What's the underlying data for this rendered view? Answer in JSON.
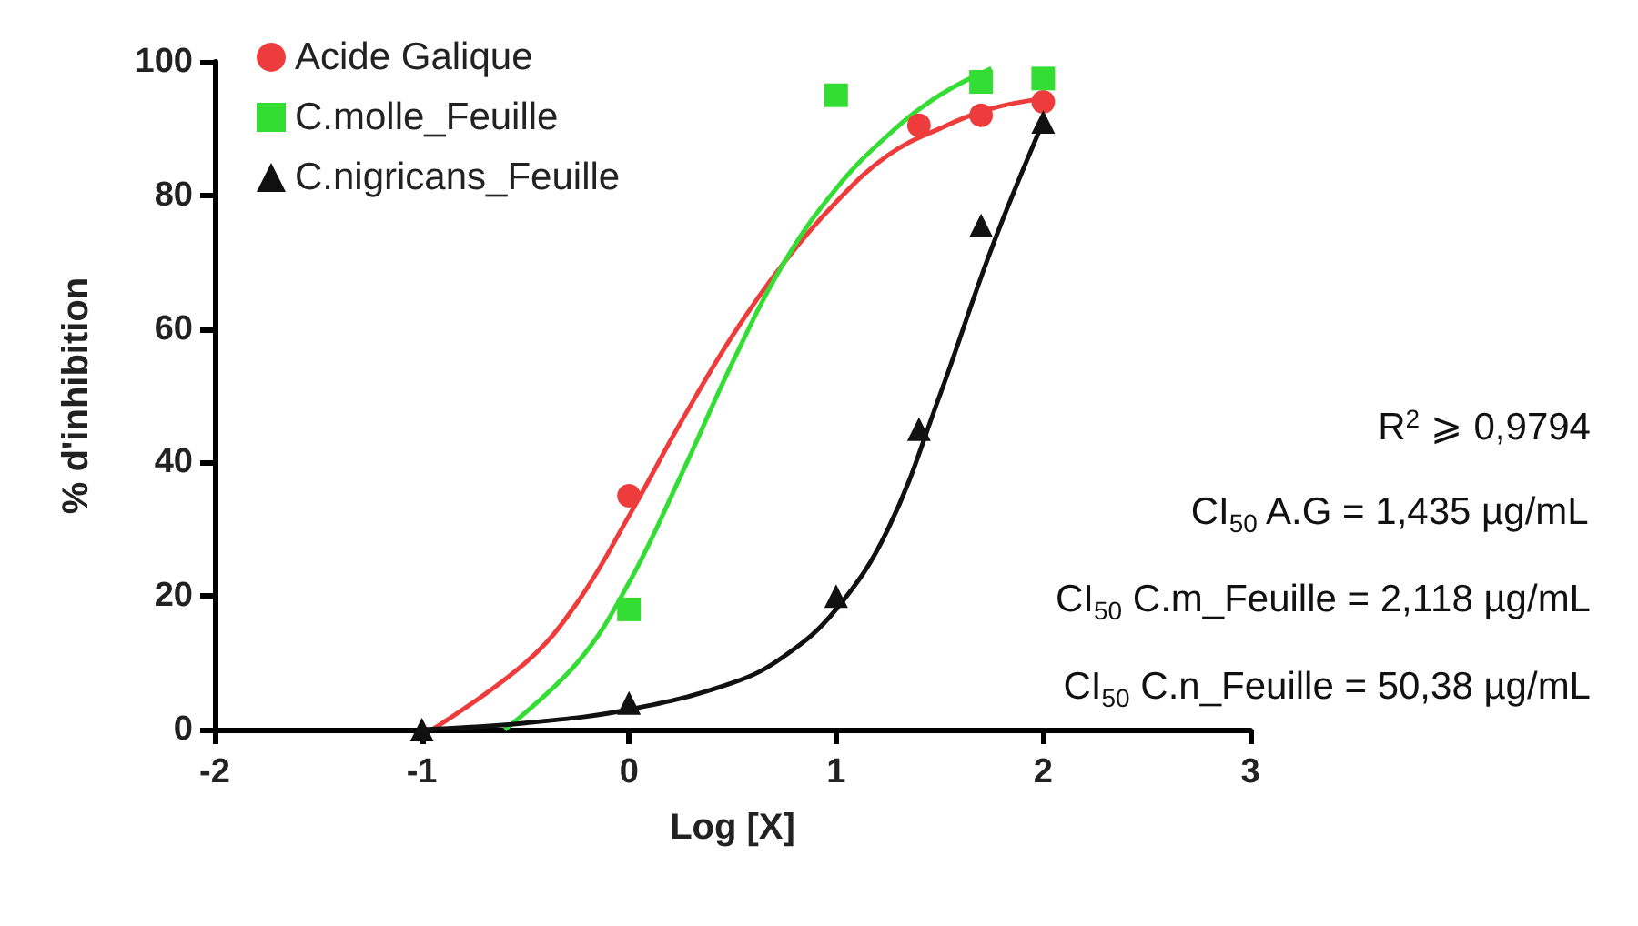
{
  "chart_data": {
    "type": "scatter",
    "xlabel": "Log [X]",
    "ylabel": "% d'inhibition",
    "xlim": [
      -2,
      3
    ],
    "xticks": [
      -2,
      -1,
      0,
      1,
      2,
      3
    ],
    "ylim": [
      0,
      100
    ],
    "yticks": [
      0,
      20,
      40,
      60,
      80,
      100
    ],
    "legend": "top left",
    "series": [
      {
        "name": "Acide Galique",
        "color": "#ee3b3b",
        "marker": "circle",
        "x": [
          0,
          1.4,
          1.7,
          2
        ],
        "values": [
          35,
          90.5,
          92,
          94
        ]
      },
      {
        "name": "C.molle_Feuille",
        "color": "#33dd33",
        "marker": "square",
        "x": [
          0,
          1,
          1.7,
          2
        ],
        "values": [
          18,
          95,
          97,
          97.5
        ]
      },
      {
        "name": "C.nigricans_Feuille",
        "color": "#111111",
        "marker": "triangle",
        "x": [
          -1,
          0,
          1,
          1.4,
          1.7,
          2
        ],
        "values": [
          0,
          4,
          20,
          45,
          75.5,
          91
        ]
      },
      {
        "type": "line",
        "color": "#ee3b3b",
        "marker": "none",
        "x": [
          -0.95,
          -0.5,
          -0.25,
          0,
          0.25,
          0.5,
          0.75,
          1,
          1.25,
          1.5,
          1.75,
          2
        ],
        "values": [
          0,
          10,
          19,
          32,
          46,
          59,
          70,
          79,
          86,
          90,
          93,
          94.5
        ]
      },
      {
        "type": "line",
        "color": "#33dd33",
        "marker": "none",
        "x": [
          -0.6,
          -0.25,
          0,
          0.25,
          0.5,
          0.75,
          1,
          1.25,
          1.5,
          1.75
        ],
        "values": [
          0,
          10,
          22,
          38,
          55,
          70,
          81,
          89,
          95,
          99
        ]
      },
      {
        "type": "line",
        "color": "#111111",
        "marker": "none",
        "x": [
          -1,
          -0.5,
          0,
          0.5,
          0.75,
          1,
          1.25,
          1.5,
          1.75,
          2
        ],
        "values": [
          0,
          1,
          3,
          7,
          11,
          18,
          30,
          50,
          72,
          91
        ]
      }
    ],
    "annotations": [
      "R$^{2}$ ⩾ 0,9794",
      "CI$_{50}$ A.G = 1,435 µg/mL",
      "CI$_{50}$ C.m_Feuille = 2,118 µg/mL",
      "CI$_{50}$ C.n_Feuille = 50,38 µg/mL"
    ]
  }
}
